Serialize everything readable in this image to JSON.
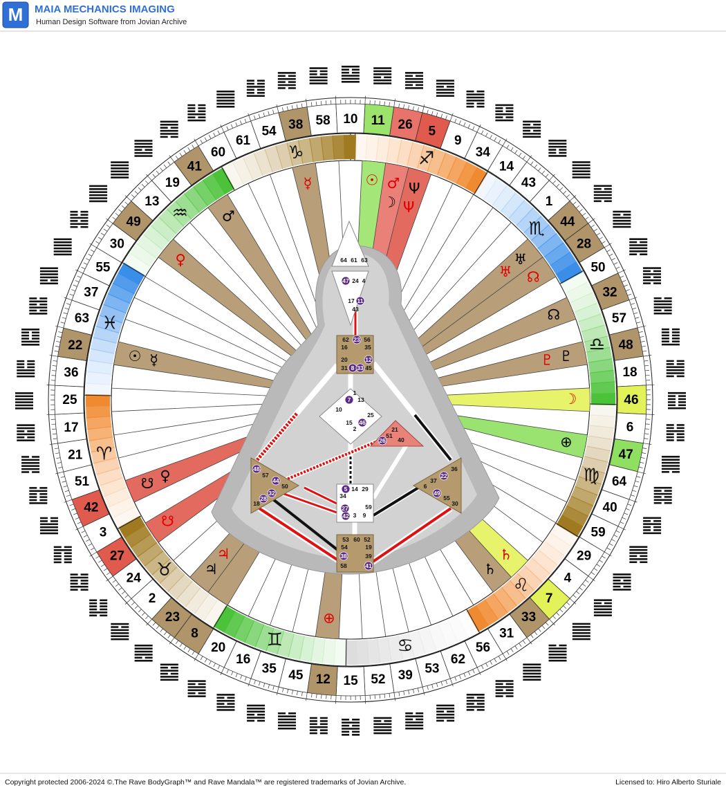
{
  "header": {
    "logo": "M",
    "title": "MAIA MECHANICS IMAGING",
    "subtitle": "Human Design Software from Jovian Archive"
  },
  "mandala": {
    "gates": [
      {
        "n": 11,
        "fill": "#9be36a"
      },
      {
        "n": 26,
        "fill": "#e8736a"
      },
      {
        "n": 5,
        "fill": "#e05a4e"
      },
      {
        "n": 9
      },
      {
        "n": 34
      },
      {
        "n": 14
      },
      {
        "n": 43
      },
      {
        "n": 1
      },
      {
        "n": 44,
        "fill": "#b0956a"
      },
      {
        "n": 28,
        "fill": "#b0956a"
      },
      {
        "n": 50
      },
      {
        "n": 32,
        "fill": "#b0956a"
      },
      {
        "n": 57
      },
      {
        "n": 48,
        "fill": "#b0956a"
      },
      {
        "n": 18
      },
      {
        "n": 46,
        "fill": "#e4f25a"
      },
      {
        "n": 6
      },
      {
        "n": 47,
        "fill": "#8fe060"
      },
      {
        "n": 64
      },
      {
        "n": 40
      },
      {
        "n": 59
      },
      {
        "n": 29
      },
      {
        "n": 4
      },
      {
        "n": 7,
        "fill": "#e4f25a"
      },
      {
        "n": 33,
        "fill": "#b0956a"
      },
      {
        "n": 31
      },
      {
        "n": 56
      },
      {
        "n": 62
      },
      {
        "n": 53
      },
      {
        "n": 39
      },
      {
        "n": 52
      },
      {
        "n": 15
      },
      {
        "n": 12,
        "fill": "#b0956a"
      },
      {
        "n": 45
      },
      {
        "n": 35
      },
      {
        "n": 16
      },
      {
        "n": 20
      },
      {
        "n": 8,
        "fill": "#b0956a"
      },
      {
        "n": 23,
        "fill": "#b0956a"
      },
      {
        "n": 2
      },
      {
        "n": 24
      },
      {
        "n": 27,
        "fill": "#e05a4e"
      },
      {
        "n": 3
      },
      {
        "n": 42,
        "fill": "#e05a4e"
      },
      {
        "n": 51
      },
      {
        "n": 21
      },
      {
        "n": 17
      },
      {
        "n": 25
      },
      {
        "n": 36
      },
      {
        "n": 22,
        "fill": "#b0956a"
      },
      {
        "n": 63
      },
      {
        "n": 37
      },
      {
        "n": 55
      },
      {
        "n": 30
      },
      {
        "n": 49,
        "fill": "#b0956a"
      },
      {
        "n": 13
      },
      {
        "n": 19
      },
      {
        "n": 41,
        "fill": "#b0956a"
      },
      {
        "n": 60
      },
      {
        "n": 61
      },
      {
        "n": 54
      },
      {
        "n": 38,
        "fill": "#b0956a"
      },
      {
        "n": 58
      },
      {
        "n": 10
      }
    ],
    "zodiac": [
      {
        "symbol": "♐",
        "color": "#f08a30"
      },
      {
        "symbol": "♏",
        "color": "#3a8ee8"
      },
      {
        "symbol": "♎",
        "color": "#4cc23a"
      },
      {
        "symbol": "♍",
        "color": "#a07a20"
      },
      {
        "symbol": "♌",
        "color": "#f08a30"
      },
      {
        "symbol": "♋",
        "color": "#dddddd"
      },
      {
        "symbol": "♊",
        "color": "#4cc23a"
      },
      {
        "symbol": "♉",
        "color": "#a07a20"
      },
      {
        "symbol": "♈",
        "color": "#f08a30"
      },
      {
        "symbol": "♓",
        "color": "#3a8ee8"
      },
      {
        "symbol": "♒",
        "color": "#4cc23a"
      },
      {
        "symbol": "♑",
        "color": "#a07a20"
      }
    ],
    "planets": [
      {
        "symbol": "☉",
        "color": "#e00000",
        "gate": 11
      },
      {
        "symbol": "♂",
        "color": "#e00000",
        "gate": 26
      },
      {
        "symbol": "☽",
        "color": "#000000",
        "gate": 26
      },
      {
        "symbol": "Ψ",
        "color": "#000000",
        "gate": 5
      },
      {
        "symbol": "Ψ",
        "color": "#e00000",
        "gate": 5
      },
      {
        "symbol": "♅",
        "color": "#000000",
        "gate": 44
      },
      {
        "symbol": "♅",
        "color": "#e00000",
        "gate": 44
      },
      {
        "symbol": "☊",
        "color": "#e00000",
        "gate": 28
      },
      {
        "symbol": "☊",
        "color": "#000000",
        "gate": 32
      },
      {
        "symbol": "♇",
        "color": "#000000",
        "gate": 48
      },
      {
        "symbol": "♇",
        "color": "#e00000",
        "gate": 48
      },
      {
        "symbol": "☽",
        "color": "#e00000",
        "gate": 46
      },
      {
        "symbol": "⊕",
        "color": "#000000",
        "gate": 47
      },
      {
        "symbol": "♄",
        "color": "#e00000",
        "gate": 7
      },
      {
        "symbol": "♄",
        "color": "#000000",
        "gate": 33
      },
      {
        "symbol": "⊕",
        "color": "#e00000",
        "gate": 12
      },
      {
        "symbol": "♃",
        "color": "#000000",
        "gate": 23
      },
      {
        "symbol": "♃",
        "color": "#e00000",
        "gate": 23
      },
      {
        "symbol": "☋",
        "color": "#e00000",
        "gate": 27
      },
      {
        "symbol": "☋",
        "color": "#000000",
        "gate": 42
      },
      {
        "symbol": "♀",
        "color": "#000000",
        "gate": 42
      },
      {
        "symbol": "☉",
        "color": "#000000",
        "gate": 22
      },
      {
        "symbol": "☿",
        "color": "#000000",
        "gate": 22
      },
      {
        "symbol": "♂",
        "color": "#000000",
        "gate": 41
      },
      {
        "symbol": "♀",
        "color": "#e00000",
        "gate": 49
      },
      {
        "symbol": "☿",
        "color": "#e00000",
        "gate": 38
      }
    ]
  },
  "bodygraph": {
    "centers": [
      [
        64,
        61,
        63
      ],
      [
        47,
        24,
        4,
        17,
        11,
        43
      ],
      [
        62,
        23,
        56,
        16,
        35,
        20,
        12,
        31,
        8,
        33,
        45
      ],
      [
        1,
        7,
        13,
        10,
        25,
        15,
        46,
        2
      ],
      [
        21,
        51,
        26,
        40
      ],
      [
        48,
        57,
        44,
        50,
        32,
        28,
        18
      ],
      [
        5,
        14,
        29,
        34,
        59,
        27,
        42,
        3,
        9
      ],
      [
        36,
        22,
        37,
        6,
        49,
        55,
        30
      ],
      [
        53,
        60,
        52,
        54,
        19,
        38,
        39,
        58,
        41
      ]
    ],
    "activated": [
      47,
      11,
      23,
      8,
      33,
      12,
      7,
      46,
      26,
      48,
      44,
      28,
      32,
      5,
      27,
      42,
      22,
      49,
      38,
      41
    ]
  },
  "footer": {
    "copyright": "Copyright protected 2006-2024 ©.The Rave BodyGraph™ and Rave Mandala™ are registered trademarks of Jovian Archive.",
    "license": "Licensed to: Hiro Alberto Sturiale"
  }
}
